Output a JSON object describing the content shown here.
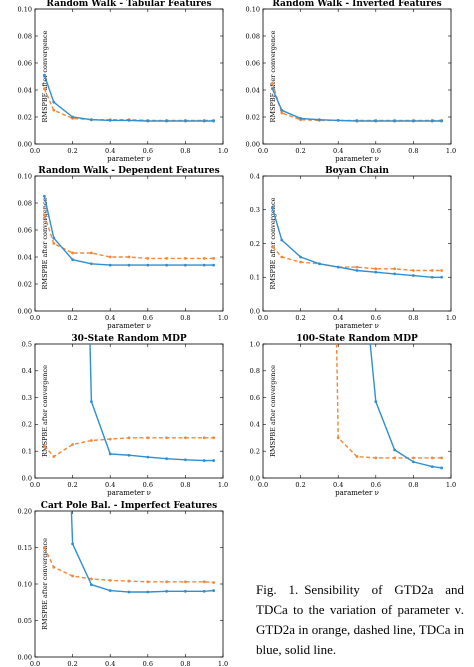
{
  "figure": {
    "caption_label": "Fig. 1.",
    "caption_text": "Sensibility of GTD2a and TDCa to the variation of parameter ν. GTD2a in orange, dashed line, TDCa in blue, solid line."
  },
  "colors": {
    "gtd2a": "#f5873a",
    "tdca": "#2f8fd0",
    "axis": "#000000"
  },
  "chart_data": [
    {
      "type": "line",
      "title": "Random Walk - Tabular Features",
      "xlabel": "parameter ν",
      "ylabel": "RMSPBE after convergence",
      "xlim": [
        0.0,
        1.0
      ],
      "ylim": [
        0.0,
        0.1
      ],
      "xticks": [
        "0.0",
        "0.2",
        "0.4",
        "0.6",
        "0.8",
        "1.0"
      ],
      "yticks": [
        "0.00",
        "0.02",
        "0.04",
        "0.06",
        "0.08",
        "0.10"
      ],
      "x": [
        0.05,
        0.1,
        0.2,
        0.3,
        0.4,
        0.5,
        0.6,
        0.7,
        0.8,
        0.9,
        0.95
      ],
      "series": [
        {
          "key": "gtd2a",
          "style": "dashed",
          "values": [
            0.041,
            0.025,
            0.019,
            0.018,
            0.018,
            0.018,
            0.0175,
            0.0175,
            0.0175,
            0.0175,
            0.0175
          ]
        },
        {
          "key": "tdca",
          "style": "solid",
          "values": [
            0.051,
            0.031,
            0.02,
            0.018,
            0.0175,
            0.0175,
            0.017,
            0.017,
            0.017,
            0.017,
            0.017
          ]
        }
      ]
    },
    {
      "type": "line",
      "title": "Random Walk - Inverted Features",
      "xlabel": "parameter ν",
      "ylabel": "RMSPBE after convergence",
      "xlim": [
        0.0,
        1.0
      ],
      "ylim": [
        0.0,
        0.1
      ],
      "xticks": [
        "0.0",
        "0.2",
        "0.4",
        "0.6",
        "0.8",
        "1.0"
      ],
      "yticks": [
        "0.00",
        "0.02",
        "0.04",
        "0.06",
        "0.08",
        "0.10"
      ],
      "x": [
        0.05,
        0.1,
        0.2,
        0.3,
        0.4,
        0.5,
        0.6,
        0.7,
        0.8,
        0.9,
        0.95
      ],
      "series": [
        {
          "key": "gtd2a",
          "style": "dashed",
          "values": [
            0.045,
            0.023,
            0.018,
            0.0175,
            0.0175,
            0.0175,
            0.0175,
            0.0175,
            0.0175,
            0.0175,
            0.0175
          ]
        },
        {
          "key": "tdca",
          "style": "solid",
          "values": [
            0.041,
            0.025,
            0.019,
            0.018,
            0.0175,
            0.017,
            0.017,
            0.017,
            0.017,
            0.017,
            0.017
          ]
        }
      ]
    },
    {
      "type": "line",
      "title": "Random Walk - Dependent Features",
      "xlabel": "parameter ν",
      "ylabel": "RMSPBE after convergence",
      "xlim": [
        0.0,
        1.0
      ],
      "ylim": [
        0.0,
        0.1
      ],
      "xticks": [
        "0.0",
        "0.2",
        "0.4",
        "0.6",
        "0.8",
        "1.0"
      ],
      "yticks": [
        "0.00",
        "0.02",
        "0.04",
        "0.06",
        "0.08",
        "0.10"
      ],
      "x": [
        0.05,
        0.1,
        0.2,
        0.3,
        0.4,
        0.5,
        0.6,
        0.7,
        0.8,
        0.9,
        0.95
      ],
      "series": [
        {
          "key": "gtd2a",
          "style": "dashed",
          "values": [
            0.071,
            0.05,
            0.043,
            0.043,
            0.04,
            0.04,
            0.039,
            0.039,
            0.039,
            0.039,
            0.039
          ]
        },
        {
          "key": "tdca",
          "style": "solid",
          "values": [
            0.085,
            0.054,
            0.038,
            0.035,
            0.034,
            0.034,
            0.034,
            0.034,
            0.034,
            0.034,
            0.034
          ]
        }
      ]
    },
    {
      "type": "line",
      "title": "Boyan Chain",
      "xlabel": "parameter ν",
      "ylabel": "RMSPBE after convergence",
      "xlim": [
        0.0,
        1.0
      ],
      "ylim": [
        0.0,
        0.4
      ],
      "xticks": [
        "0.0",
        "0.2",
        "0.4",
        "0.6",
        "0.8",
        "1.0"
      ],
      "yticks": [
        "0.0",
        "0.1",
        "0.2",
        "0.3",
        "0.4"
      ],
      "x": [
        0.05,
        0.1,
        0.2,
        0.3,
        0.4,
        0.5,
        0.6,
        0.7,
        0.8,
        0.9,
        0.95
      ],
      "series": [
        {
          "key": "gtd2a",
          "style": "dashed",
          "values": [
            0.19,
            0.16,
            0.145,
            0.14,
            0.13,
            0.13,
            0.125,
            0.125,
            0.12,
            0.12,
            0.12
          ]
        },
        {
          "key": "tdca",
          "style": "solid",
          "values": [
            0.305,
            0.21,
            0.16,
            0.14,
            0.13,
            0.12,
            0.115,
            0.11,
            0.105,
            0.1,
            0.1
          ]
        }
      ]
    },
    {
      "type": "line",
      "title": "30-State Random MDP",
      "xlabel": "parameter ν",
      "ylabel": "RMSPBE after convergence",
      "xlim": [
        0.0,
        1.0
      ],
      "ylim": [
        0.0,
        0.5
      ],
      "xticks": [
        "0.0",
        "0.2",
        "0.4",
        "0.6",
        "0.8",
        "1.0"
      ],
      "yticks": [
        "0.0",
        "0.1",
        "0.2",
        "0.3",
        "0.4",
        "0.5"
      ],
      "x": [
        0.05,
        0.1,
        0.2,
        0.3,
        0.4,
        0.5,
        0.6,
        0.7,
        0.8,
        0.9,
        0.95
      ],
      "series": [
        {
          "key": "gtd2a",
          "style": "dashed",
          "values": [
            0.12,
            0.08,
            0.125,
            0.14,
            0.145,
            0.15,
            0.15,
            0.15,
            0.15,
            0.15,
            0.15
          ]
        },
        {
          "key": "tdca",
          "style": "solid",
          "values": [
            null,
            null,
            null,
            0.285,
            0.09,
            0.085,
            0.078,
            0.072,
            0.068,
            0.065,
            0.065
          ],
          "offscale_from_x": 0.29
        }
      ]
    },
    {
      "type": "line",
      "title": "100-State Random MDP",
      "xlabel": "parameter ν",
      "ylabel": "RMSPBE after convergence",
      "xlim": [
        0.0,
        1.0
      ],
      "ylim": [
        0.0,
        1.0
      ],
      "xticks": [
        "0.0",
        "0.2",
        "0.4",
        "0.6",
        "0.8",
        "1.0"
      ],
      "yticks": [
        "0.0",
        "0.2",
        "0.4",
        "0.6",
        "0.8",
        "1.0"
      ],
      "x": [
        0.05,
        0.1,
        0.2,
        0.3,
        0.4,
        0.5,
        0.6,
        0.7,
        0.8,
        0.9,
        0.95
      ],
      "series": [
        {
          "key": "gtd2a",
          "style": "dashed",
          "values": [
            null,
            null,
            null,
            null,
            0.3,
            0.16,
            0.15,
            0.15,
            0.15,
            0.15,
            0.15
          ],
          "offscale_from_x": 0.39
        },
        {
          "key": "tdca",
          "style": "solid",
          "values": [
            null,
            null,
            null,
            null,
            null,
            null,
            0.57,
            0.21,
            0.12,
            0.085,
            0.075
          ],
          "offscale_from_x": 0.56
        }
      ]
    },
    {
      "type": "line",
      "title": "Cart Pole Bal. - Imperfect Features",
      "xlabel": "parameter ν",
      "ylabel": "RMSPBE after convergence",
      "xlim": [
        0.0,
        1.0
      ],
      "ylim": [
        0.0,
        0.2
      ],
      "xticks": [
        "0.0",
        "0.2",
        "0.4",
        "0.6",
        "0.8",
        "1.0"
      ],
      "yticks": [
        "0.00",
        "0.05",
        "0.10",
        "0.15",
        "0.20"
      ],
      "x": [
        0.05,
        0.1,
        0.2,
        0.3,
        0.4,
        0.5,
        0.6,
        0.7,
        0.8,
        0.9,
        0.95
      ],
      "series": [
        {
          "key": "gtd2a",
          "style": "dashed",
          "values": [
            0.15,
            0.123,
            0.111,
            0.107,
            0.105,
            0.104,
            0.103,
            0.103,
            0.103,
            0.103,
            0.102
          ]
        },
        {
          "key": "tdca",
          "style": "solid",
          "values": [
            null,
            null,
            0.155,
            0.099,
            0.091,
            0.089,
            0.089,
            0.09,
            0.09,
            0.09,
            0.091
          ],
          "offscale_from_x": 0.19
        }
      ]
    }
  ]
}
